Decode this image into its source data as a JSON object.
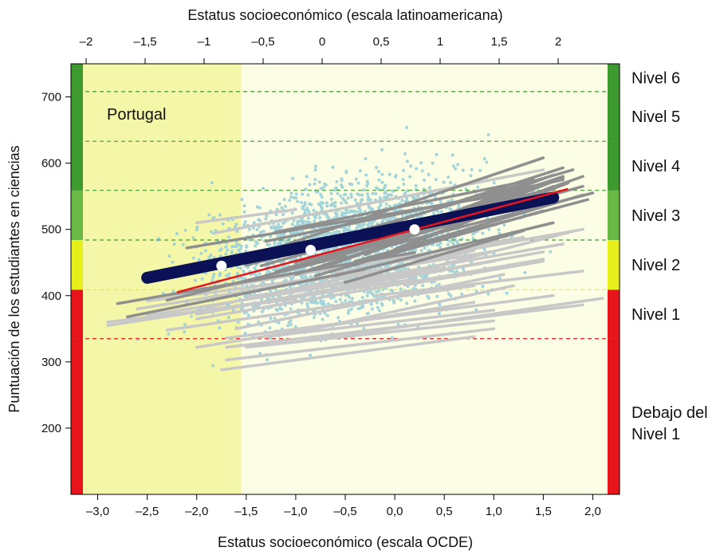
{
  "chart_data": {
    "type": "scatter",
    "title": "",
    "top_axis": {
      "label": "Estatus socioeconómico (escala latinoamericana)",
      "ticks": [
        -2,
        -1.5,
        -1,
        -0.5,
        0,
        0.5,
        1,
        1.5,
        2
      ],
      "tick_labels": [
        "–2",
        "–1,5",
        "–1",
        "–0,5",
        "0",
        "0,5",
        "1",
        "1,5",
        "2"
      ]
    },
    "x_axis": {
      "label": "Estatus socioeconómico (escala OCDE)",
      "range": [
        -3.27,
        2.27
      ],
      "ticks": [
        -3.0,
        -2.5,
        -2.0,
        -1.5,
        -1.0,
        -0.5,
        0.0,
        0.5,
        1.0,
        1.5,
        2.0
      ],
      "tick_labels": [
        "–3,0",
        "–2,5",
        "–2,0",
        "–1,5",
        "–1,0",
        "–0,5",
        "0,0",
        "0,5",
        "1,0",
        "1,5",
        "2,0"
      ]
    },
    "y_axis": {
      "label": "Puntuación de los estudiantes en ciencias",
      "range": [
        100,
        750
      ],
      "ticks": [
        200,
        300,
        400,
        500,
        600,
        700
      ],
      "tick_labels": [
        "200",
        "300",
        "400",
        "500",
        "600",
        "700"
      ]
    },
    "country_label": "Portugal",
    "shaded_region": {
      "x_max": -1.55,
      "color": "#f5f7a8"
    },
    "background_color": "#fbfde4",
    "proficiency_levels": [
      {
        "name": "Debajo del Nivel 1",
        "label_lines": [
          "Debajo del",
          "Nivel 1"
        ],
        "from": 100,
        "to": 335,
        "color": "#e8141c"
      },
      {
        "name": "Nivel 1",
        "label_lines": [
          "Nivel 1"
        ],
        "from": 335,
        "to": 409,
        "color": "#e8141c"
      },
      {
        "name": "Nivel 2",
        "label_lines": [
          "Nivel 2"
        ],
        "from": 409,
        "to": 484,
        "color": "#e6ef1a"
      },
      {
        "name": "Nivel 3",
        "label_lines": [
          "Nivel 3"
        ],
        "from": 484,
        "to": 559,
        "color": "#6ab845"
      },
      {
        "name": "Nivel 4",
        "label_lines": [
          "Nivel 4"
        ],
        "from": 559,
        "to": 633,
        "color": "#3c9a2e"
      },
      {
        "name": "Nivel 5",
        "label_lines": [
          "Nivel 5"
        ],
        "from": 633,
        "to": 708,
        "color": "#3c9a2e"
      },
      {
        "name": "Nivel 6",
        "label_lines": [
          "Nivel 6"
        ],
        "from": 708,
        "to": 750,
        "color": "#3c9a2e"
      }
    ],
    "threshold_lines": [
      {
        "y": 335,
        "color": "#e8141c"
      },
      {
        "y": 409,
        "color": "#e6ef1a"
      },
      {
        "y": 484,
        "color": "#3c9a2e"
      },
      {
        "y": 559,
        "color": "#3c9a2e"
      },
      {
        "y": 633,
        "color": "#3c9a2e"
      },
      {
        "y": 708,
        "color": "#3c9a2e"
      }
    ],
    "country_gradient": {
      "x": [
        -2.5,
        1.6
      ],
      "y": [
        427,
        548
      ],
      "color": "#0a1155"
    },
    "average_gradient": {
      "x": [
        -2.2,
        1.75
      ],
      "y": [
        405,
        561
      ],
      "color": "#e8141c"
    },
    "gradient_points": [
      {
        "x": -1.75,
        "y": 445
      },
      {
        "x": -0.85,
        "y": 469
      },
      {
        "x": 0.2,
        "y": 500
      }
    ],
    "school_gradients": [
      {
        "x": [
          -2.1,
          1.4
        ],
        "y": [
          472,
          560
        ],
        "shade": "dark"
      },
      {
        "x": [
          -1.2,
          1.5
        ],
        "y": [
          472,
          608
        ],
        "shade": "dark"
      },
      {
        "x": [
          -1.0,
          1.8
        ],
        "y": [
          470,
          590
        ],
        "shade": "dark"
      },
      {
        "x": [
          -0.9,
          1.7
        ],
        "y": [
          468,
          593
        ],
        "shade": "dark"
      },
      {
        "x": [
          -0.7,
          1.7
        ],
        "y": [
          460,
          580
        ],
        "shade": "dark"
      },
      {
        "x": [
          -1.3,
          1.7
        ],
        "y": [
          482,
          575
        ],
        "shade": "dark"
      },
      {
        "x": [
          -1.5,
          1.6
        ],
        "y": [
          446,
          562
        ],
        "shade": "dark"
      },
      {
        "x": [
          -1.0,
          1.5
        ],
        "y": [
          450,
          555
        ],
        "shade": "dark"
      },
      {
        "x": [
          -1.1,
          1.9
        ],
        "y": [
          441,
          565
        ],
        "shade": "dark"
      },
      {
        "x": [
          -0.8,
          1.6
        ],
        "y": [
          452,
          572
        ],
        "shade": "dark"
      },
      {
        "x": [
          -0.5,
          1.9
        ],
        "y": [
          446,
          552
        ],
        "shade": "dark"
      },
      {
        "x": [
          -0.4,
          1.75
        ],
        "y": [
          446,
          570
        ],
        "shade": "dark"
      },
      {
        "x": [
          -0.6,
          1.6
        ],
        "y": [
          461,
          582
        ],
        "shade": "dark"
      },
      {
        "x": [
          -1.2,
          1.4
        ],
        "y": [
          436,
          552
        ],
        "shade": "dark"
      },
      {
        "x": [
          -0.9,
          1.3
        ],
        "y": [
          455,
          535
        ],
        "shade": "dark"
      },
      {
        "x": [
          -0.3,
          1.7
        ],
        "y": [
          462,
          578
        ],
        "shade": "dark"
      },
      {
        "x": [
          0.0,
          1.6
        ],
        "y": [
          470,
          565
        ],
        "shade": "dark"
      },
      {
        "x": [
          -0.7,
          1.9
        ],
        "y": [
          444,
          580
        ],
        "shade": "dark"
      },
      {
        "x": [
          -1.0,
          1.2
        ],
        "y": [
          432,
          540
        ],
        "shade": "dark"
      },
      {
        "x": [
          -0.4,
          1.95
        ],
        "y": [
          452,
          545
        ],
        "shade": "dark"
      },
      {
        "x": [
          -1.4,
          1.0
        ],
        "y": [
          426,
          525
        ],
        "shade": "dark"
      },
      {
        "x": [
          -0.8,
          1.5
        ],
        "y": [
          430,
          528
        ],
        "shade": "dark"
      },
      {
        "x": [
          -1.35,
          0.4
        ],
        "y": [
          445,
          520
        ],
        "shade": "dark"
      },
      {
        "x": [
          -0.6,
          1.6
        ],
        "y": [
          430,
          510
        ],
        "shade": "dark"
      },
      {
        "x": [
          -0.2,
          2.0
        ],
        "y": [
          470,
          555
        ],
        "shade": "dark"
      },
      {
        "x": [
          -0.5,
          1.3
        ],
        "y": [
          420,
          498
        ],
        "shade": "dark"
      },
      {
        "x": [
          -1.2,
          1.4
        ],
        "y": [
          496,
          575
        ],
        "shade": "dark"
      },
      {
        "x": [
          -2.8,
          0.2
        ],
        "y": [
          388,
          465
        ],
        "shade": "dark"
      },
      {
        "x": [
          -2.7,
          -0.3
        ],
        "y": [
          368,
          440
        ],
        "shade": "dark"
      },
      {
        "x": [
          -2.3,
          -0.5
        ],
        "y": [
          393,
          460
        ],
        "shade": "dark"
      },
      {
        "x": [
          -1.9,
          0.8
        ],
        "y": [
          382,
          468
        ],
        "shade": "light"
      },
      {
        "x": [
          -0.4,
          1.8
        ],
        "y": [
          414,
          497
        ],
        "shade": "light"
      },
      {
        "x": [
          -1.8,
          1.5
        ],
        "y": [
          495,
          590
        ],
        "shade": "light"
      },
      {
        "x": [
          -2.0,
          -1.0
        ],
        "y": [
          510,
          530
        ],
        "shade": "light"
      },
      {
        "x": [
          -2.9,
          0.2
        ],
        "y": [
          355,
          425
        ],
        "shade": "light"
      },
      {
        "x": [
          -2.9,
          -1.0
        ],
        "y": [
          360,
          395
        ],
        "shade": "light"
      },
      {
        "x": [
          -2.6,
          1.0
        ],
        "y": [
          380,
          467
        ],
        "shade": "light"
      },
      {
        "x": [
          -2.5,
          0.5
        ],
        "y": [
          370,
          442
        ],
        "shade": "light"
      },
      {
        "x": [
          -2.0,
          1.5
        ],
        "y": [
          365,
          455
        ],
        "shade": "light"
      },
      {
        "x": [
          -1.6,
          1.1
        ],
        "y": [
          350,
          432
        ],
        "shade": "light"
      },
      {
        "x": [
          -2.3,
          0.8
        ],
        "y": [
          348,
          415
        ],
        "shade": "light"
      },
      {
        "x": [
          -1.0,
          1.2
        ],
        "y": [
          344,
          415
        ],
        "shade": "light"
      },
      {
        "x": [
          -1.7,
          1.6
        ],
        "y": [
          336,
          400
        ],
        "shade": "light"
      },
      {
        "x": [
          -2.0,
          0.8
        ],
        "y": [
          322,
          390
        ],
        "shade": "light"
      },
      {
        "x": [
          -0.9,
          2.1
        ],
        "y": [
          332,
          396
        ],
        "shade": "light"
      },
      {
        "x": [
          -1.3,
          1.0
        ],
        "y": [
          338,
          378
        ],
        "shade": "light"
      },
      {
        "x": [
          -1.7,
          1.9
        ],
        "y": [
          322,
          386
        ],
        "shade": "light"
      },
      {
        "x": [
          -1.7,
          1.0
        ],
        "y": [
          303,
          350
        ],
        "shade": "light"
      },
      {
        "x": [
          -1.75,
          0.8
        ],
        "y": [
          288,
          338
        ],
        "shade": "light"
      },
      {
        "x": [
          -1.5,
          1.0
        ],
        "y": [
          322,
          362
        ],
        "shade": "light"
      },
      {
        "x": [
          -0.2,
          1.9
        ],
        "y": [
          400,
          437
        ],
        "shade": "light"
      },
      {
        "x": [
          0.1,
          1.5
        ],
        "y": [
          416,
          452
        ],
        "shade": "light"
      },
      {
        "x": [
          -1.0,
          1.7
        ],
        "y": [
          408,
          478
        ],
        "shade": "light"
      },
      {
        "x": [
          -2.0,
          1.0
        ],
        "y": [
          372,
          452
        ],
        "shade": "light"
      },
      {
        "x": [
          -2.5,
          0.0
        ],
        "y": [
          392,
          442
        ],
        "shade": "light"
      },
      {
        "x": [
          -1.3,
          1.5
        ],
        "y": [
          392,
          466
        ],
        "shade": "light"
      },
      {
        "x": [
          -2.2,
          1.3
        ],
        "y": [
          402,
          488
        ],
        "shade": "light"
      },
      {
        "x": [
          -1.5,
          0.2
        ],
        "y": [
          398,
          432
        ],
        "shade": "light"
      },
      {
        "x": [
          0.2,
          1.6
        ],
        "y": [
          455,
          492
        ],
        "shade": "light"
      },
      {
        "x": [
          -0.6,
          1.9
        ],
        "y": [
          435,
          500
        ],
        "shade": "light"
      }
    ],
    "colors": {
      "points": "#a3d4da",
      "school_dark": "#8f8f8f",
      "school_light": "#c8c8c8"
    }
  }
}
